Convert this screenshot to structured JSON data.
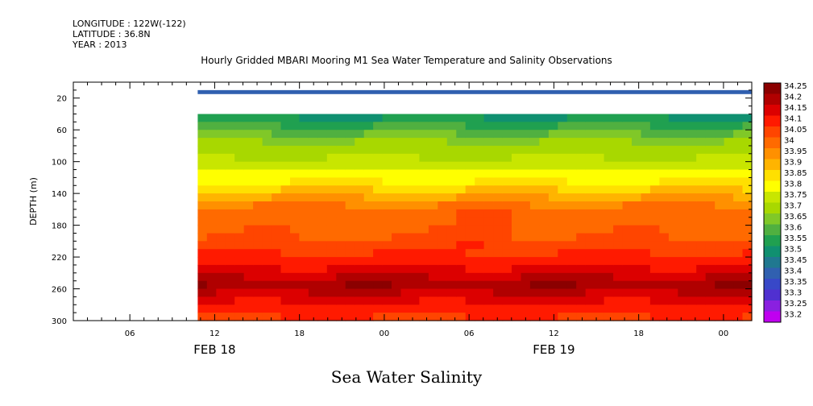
{
  "header": {
    "longitude": "LONGITUDE : 122W(-122)",
    "latitude": "LATITUDE : 36.8N",
    "year": "YEAR : 2013"
  },
  "caption": "Sea Water Salinity",
  "chart_data": {
    "type": "heatmap",
    "title": "Hourly Gridded MBARI Mooring M1 Sea Water Temperature and Salinity Observations",
    "xlabel": "",
    "ylabel": "DEPTH (m)",
    "x_range_hours": [
      2,
      50
    ],
    "x_tick_labels": [
      "06",
      "12",
      "18",
      "00",
      "06",
      "12",
      "18",
      "00"
    ],
    "x_tick_hours": [
      6,
      12,
      18,
      24,
      30,
      36,
      42,
      48
    ],
    "date_labels": [
      {
        "text": "FEB 18",
        "hour": 12
      },
      {
        "text": "FEB 19",
        "hour": 36
      }
    ],
    "data_start_hour": 10.8,
    "y_range": [
      300,
      0
    ],
    "y_ticks": [
      20,
      60,
      100,
      140,
      180,
      220,
      260,
      300
    ],
    "y_tick_labels": [
      "20",
      "60",
      "100",
      "140",
      "180",
      "220",
      "260",
      "300"
    ],
    "colorbar": {
      "levels": [
        "34.25",
        "34.2",
        "34.15",
        "34.1",
        "34.05",
        "34",
        "33.95",
        "33.9",
        "33.85",
        "33.8",
        "33.75",
        "33.7",
        "33.65",
        "33.6",
        "33.55",
        "33.5",
        "33.45",
        "33.4",
        "33.35",
        "33.3",
        "33.25",
        "33.2"
      ],
      "colors": [
        "#8b0000",
        "#b00000",
        "#dc0000",
        "#ff1a00",
        "#ff4500",
        "#ff6a00",
        "#ff9000",
        "#ffb400",
        "#ffe000",
        "#ffff00",
        "#c8e600",
        "#a8d800",
        "#80c828",
        "#50b040",
        "#20a050",
        "#109070",
        "#207890",
        "#3060b0",
        "#3848c8",
        "#5030d0",
        "#8a20e0",
        "#c000f0"
      ]
    },
    "surface_layer": {
      "depth_top": 10,
      "depth_bottom": 15,
      "salinity": 33.4
    },
    "missing_band": {
      "depth_top": 15,
      "depth_bottom": 40
    },
    "profile_depths": [
      40,
      50,
      60,
      70,
      80,
      90,
      100,
      110,
      120,
      130,
      140,
      150,
      160,
      170,
      180,
      190,
      200,
      210,
      220,
      230,
      240,
      250,
      260,
      270,
      280,
      290,
      300
    ],
    "profile_salinity": [
      33.55,
      33.6,
      33.65,
      33.7,
      33.72,
      33.75,
      33.78,
      33.82,
      33.85,
      33.9,
      33.95,
      34.0,
      34.02,
      34.03,
      34.04,
      34.05,
      34.07,
      34.1,
      34.13,
      34.16,
      34.2,
      34.24,
      34.2,
      34.16,
      34.12,
      34.1,
      34.05
    ]
  }
}
